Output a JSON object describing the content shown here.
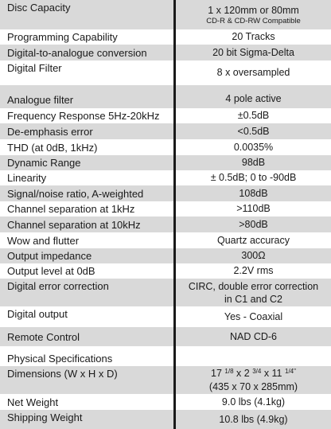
{
  "specs": [
    {
      "label": "Disc Capacity",
      "value": "1 x 120mm or 80mm",
      "sub": "CD-R & CD-RW Compatible"
    },
    {
      "label": "Programming Capability",
      "value": "20 Tracks"
    },
    {
      "label": "Digital-to-analogue conversion",
      "value": "20 bit Sigma-Delta"
    },
    {
      "label": "Digital Filter",
      "value": "8 x oversampled"
    },
    {
      "label": "Analogue filter",
      "value": "4 pole active"
    },
    {
      "label": "Frequency Response 5Hz-20kHz",
      "value": "±0.5dB"
    },
    {
      "label": "De-emphasis error",
      "value": "<0.5dB"
    },
    {
      "label": "THD (at 0dB, 1kHz)",
      "value": "0.0035%"
    },
    {
      "label": "Dynamic Range",
      "value": "98dB"
    },
    {
      "label": "Linearity",
      "value": "± 0.5dB; 0 to -90dB"
    },
    {
      "label": "Signal/noise ratio, A-weighted",
      "value": "108dB"
    },
    {
      "label": "Channel separation at 1kHz",
      "value": ">110dB"
    },
    {
      "label": "Channel separation at 10kHz",
      "value": ">80dB"
    },
    {
      "label": "Wow and flutter",
      "value": "Quartz accuracy"
    },
    {
      "label": "Output impedance",
      "value": "300Ω"
    },
    {
      "label": "Output level at 0dB",
      "value": "2.2V rms"
    },
    {
      "label": "Digital error correction",
      "value": "CIRC, double error correction",
      "value2": "in C1 and C2"
    },
    {
      "label": "Digital output",
      "value": "Yes - Coaxial"
    },
    {
      "label": "Remote Control",
      "value": "NAD CD-6"
    },
    {
      "label": "Physical Specifications",
      "value": ""
    },
    {
      "label": "Dimensions (W x H x D)",
      "dim_a": "17",
      "dim_a_frac": "1/8",
      "dim_b": "x 2",
      "dim_b_frac": "3/4",
      "dim_c": "x 11",
      "dim_c_frac": "1/4\"",
      "value2": "(435 x 70 x 285mm)"
    },
    {
      "label": "Net Weight",
      "value": "9.0 lbs (4.1kg)"
    },
    {
      "label": "Shipping Weight",
      "value": "10.8 lbs (4.9kg)"
    }
  ]
}
